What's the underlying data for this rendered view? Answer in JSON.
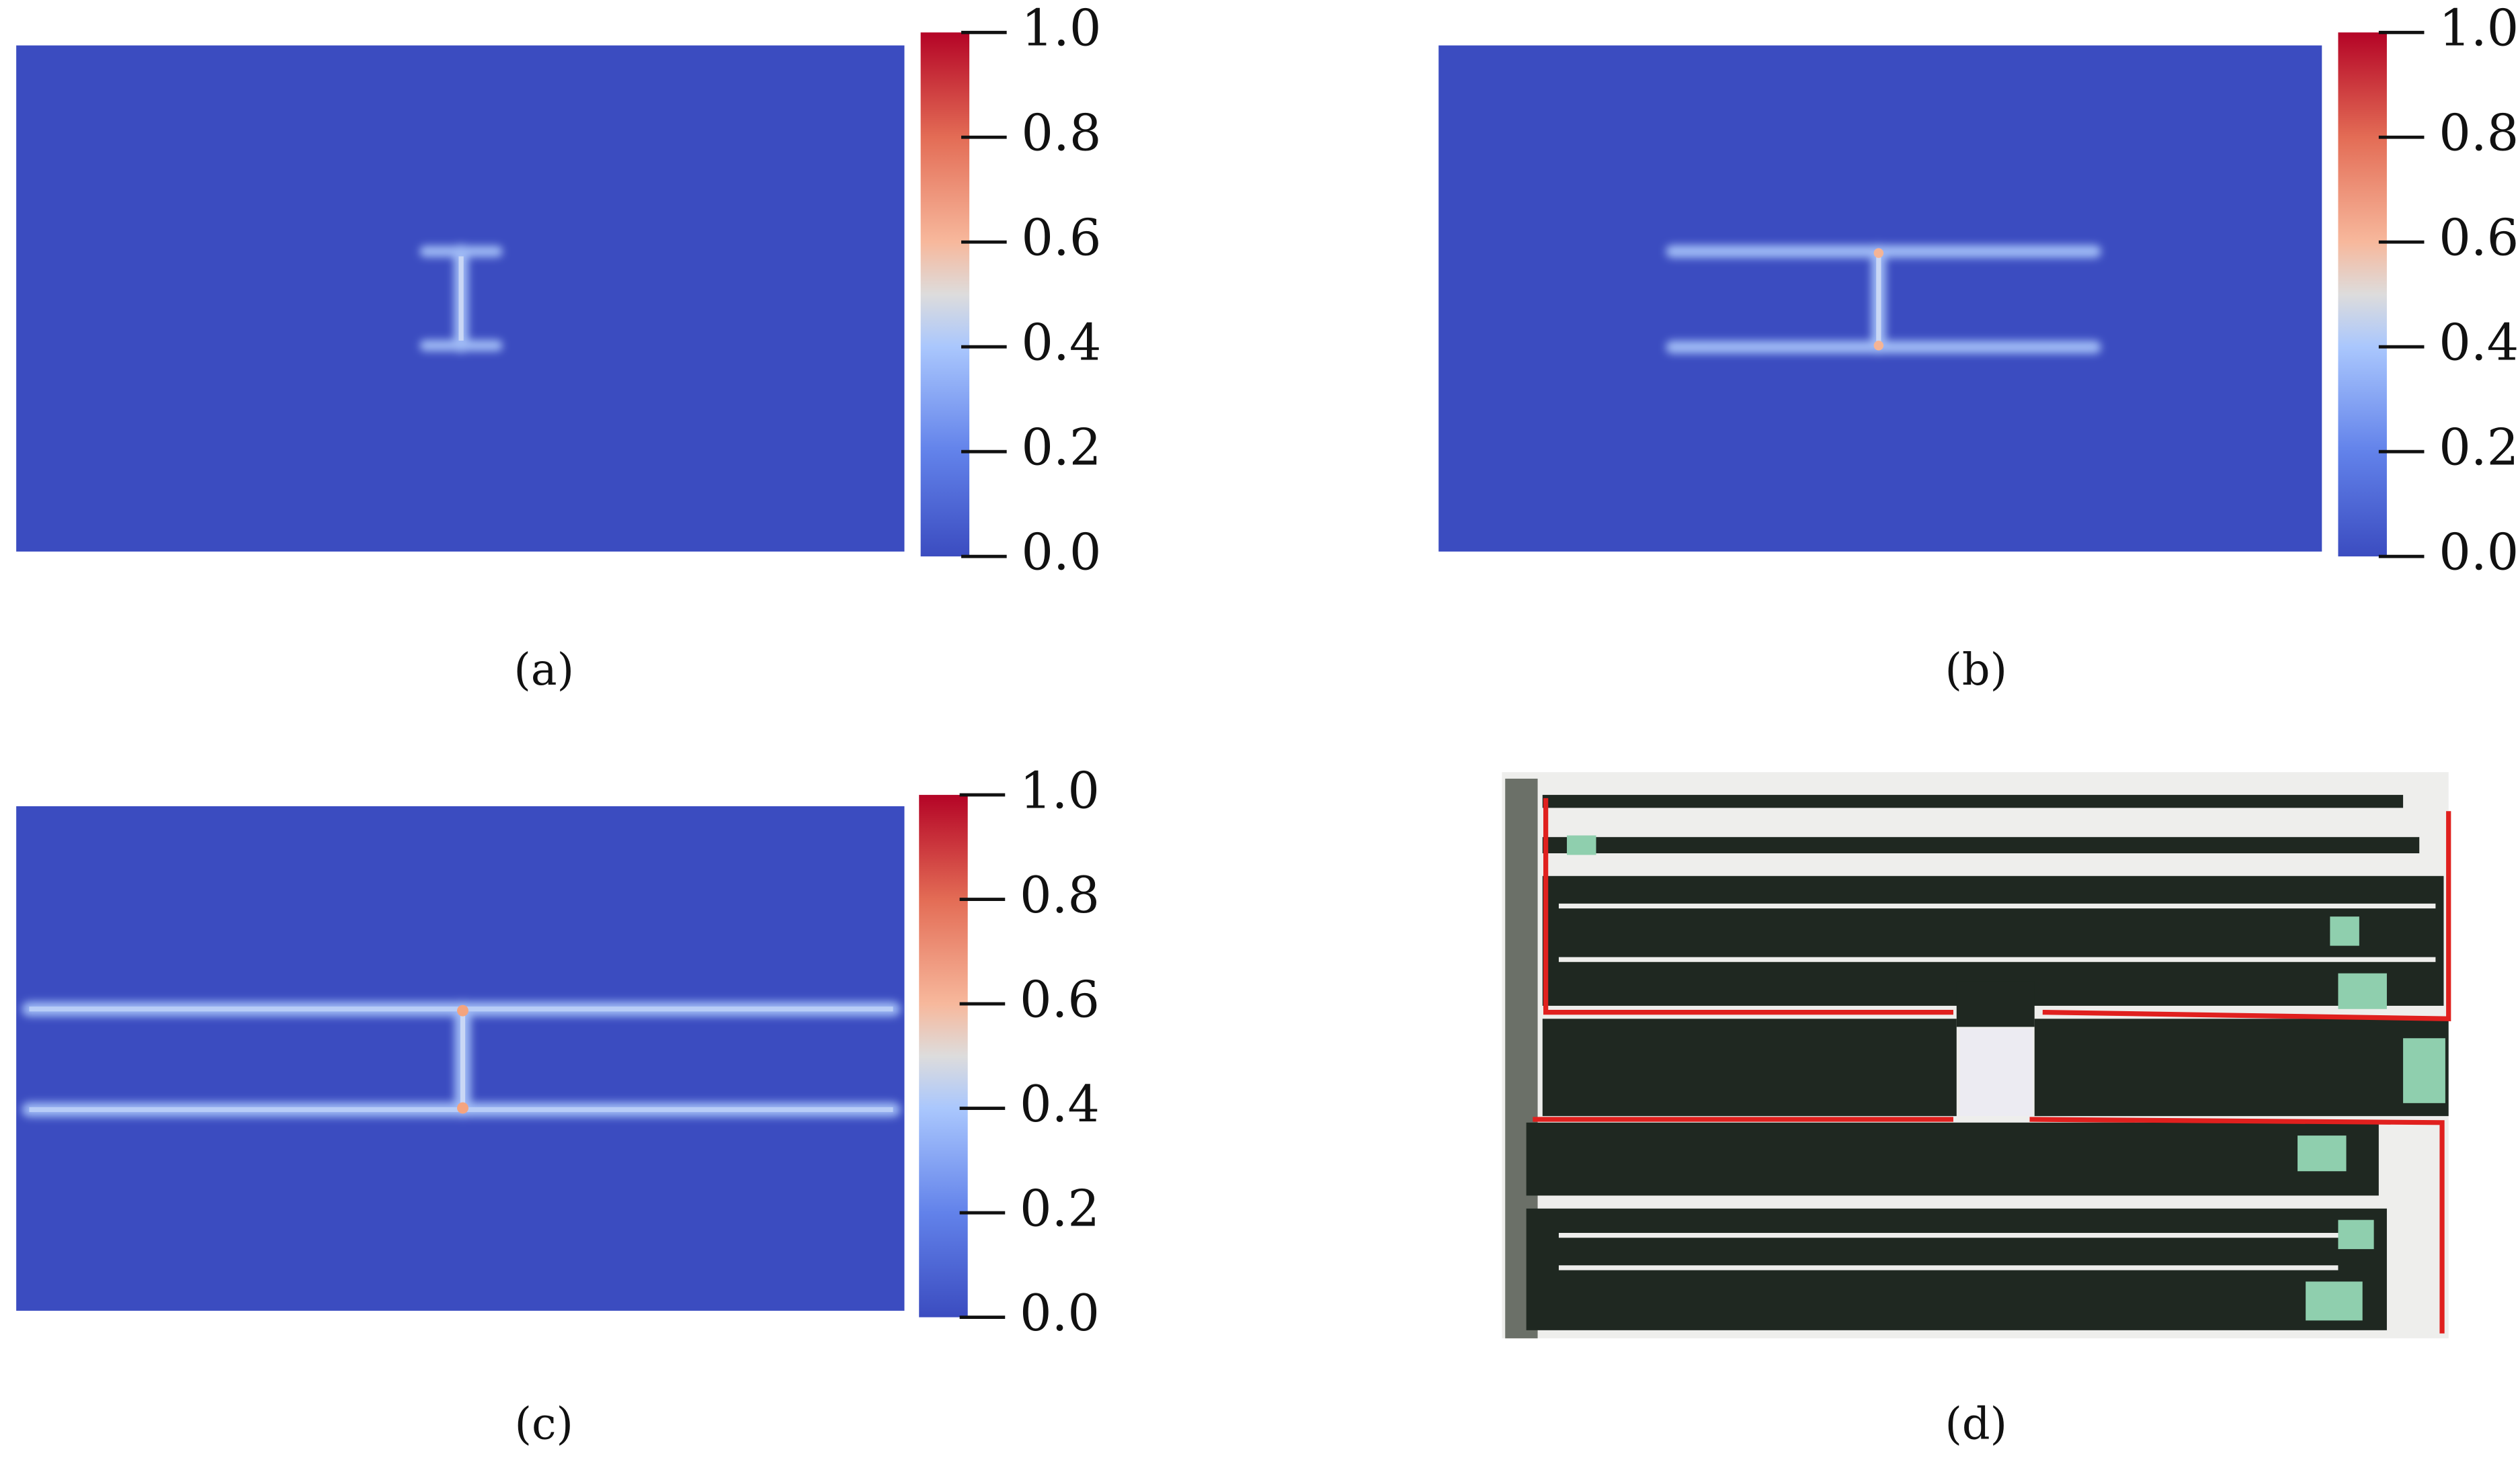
{
  "panels": [
    {
      "caption": "(a)",
      "colorbar": {
        "lim": [
          0,
          1
        ],
        "ticks": [
          {
            "value": 0,
            "label": "0.0"
          },
          {
            "value": 0.2,
            "label": "0.2"
          },
          {
            "value": 0.4,
            "label": "0.4"
          },
          {
            "value": 0.6,
            "label": "0.6"
          },
          {
            "value": 0.8,
            "label": "0.8"
          },
          {
            "value": 1,
            "label": "1.0"
          }
        ]
      }
    },
    {
      "caption": "(b)",
      "colorbar": {
        "lim": [
          0,
          1
        ],
        "ticks": [
          {
            "value": 0,
            "label": "0.0"
          },
          {
            "value": 0.2,
            "label": "0.2"
          },
          {
            "value": 0.4,
            "label": "0.4"
          },
          {
            "value": 0.6,
            "label": "0.6"
          },
          {
            "value": 0.8,
            "label": "0.8"
          },
          {
            "value": 1,
            "label": "1.0"
          }
        ]
      }
    },
    {
      "caption": "(c)",
      "colorbar": {
        "lim": [
          0,
          1
        ],
        "ticks": [
          {
            "value": 0,
            "label": "0.0"
          },
          {
            "value": 0.2,
            "label": "0.2"
          },
          {
            "value": 0.4,
            "label": "0.4"
          },
          {
            "value": 0.6,
            "label": "0.6"
          },
          {
            "value": 0.8,
            "label": "0.8"
          },
          {
            "value": 1,
            "label": "1.0"
          }
        ]
      }
    },
    {
      "caption": "(d)"
    }
  ]
}
